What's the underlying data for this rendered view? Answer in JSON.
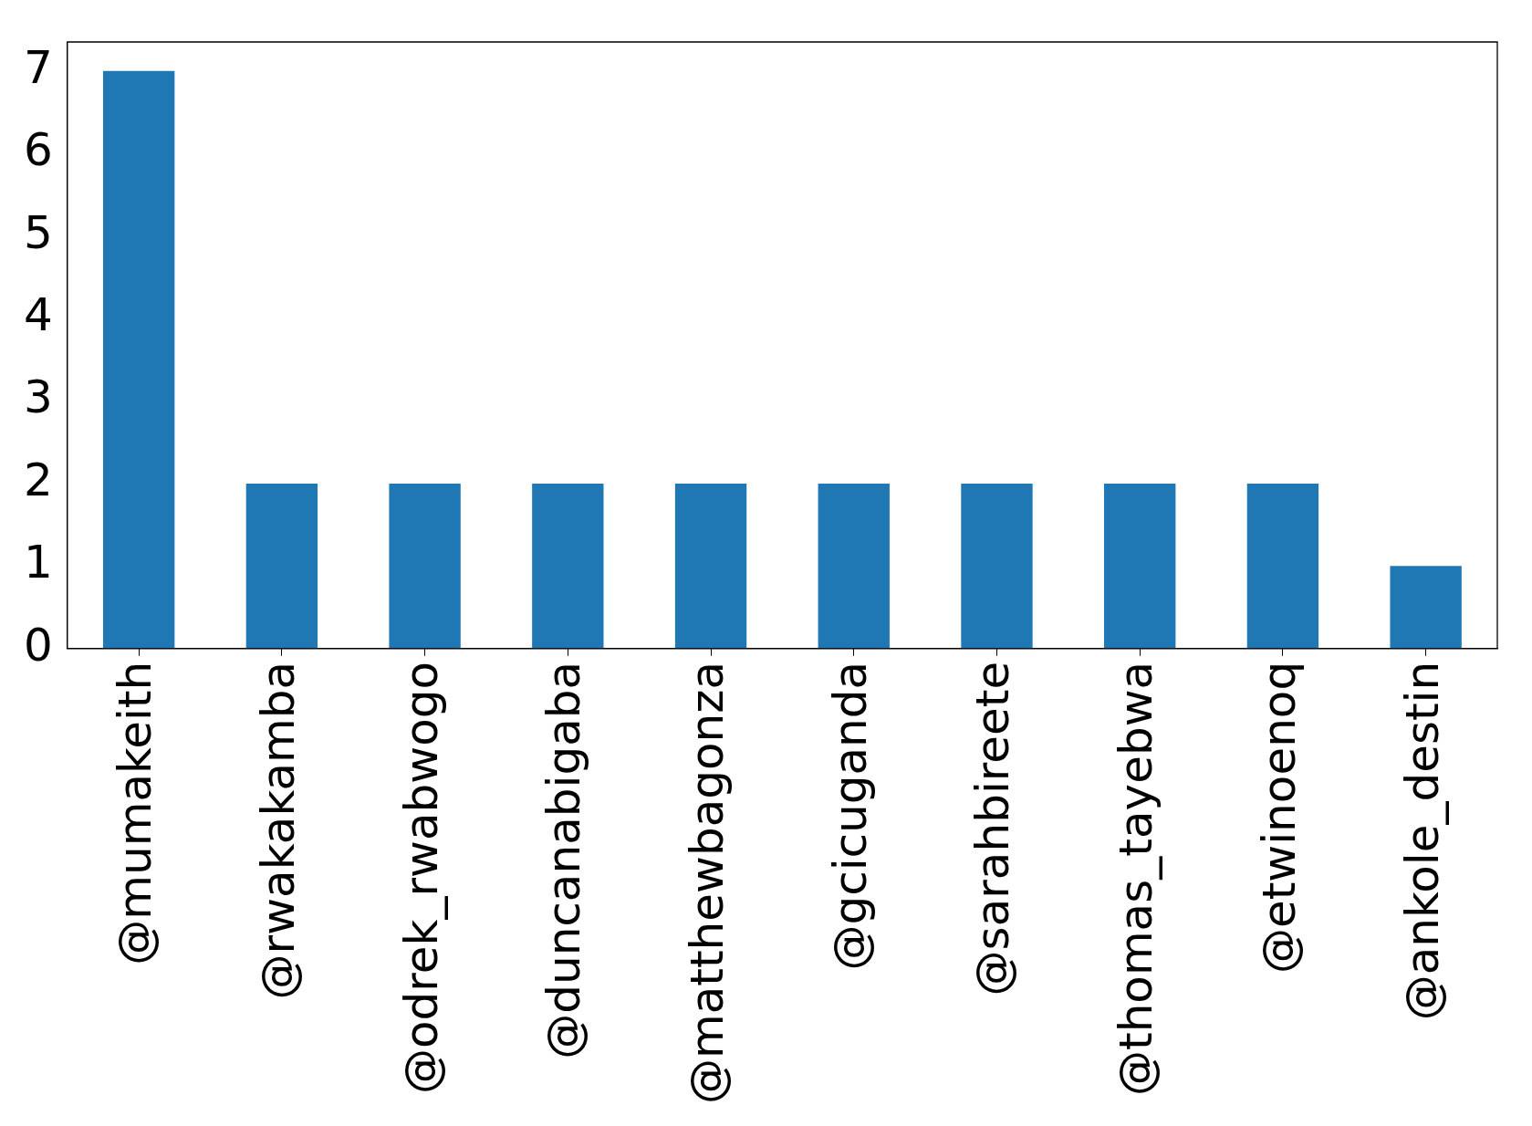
{
  "chart_data": {
    "type": "bar",
    "categories": [
      "@mumakeith",
      "@rwakakamba",
      "@odrek_rwabwogo",
      "@duncanabigaba",
      "@matthewbagonza",
      "@gcicuganda",
      "@sarahbireete",
      "@thomas_tayebwa",
      "@etwinoenoq",
      "@ankole_destin"
    ],
    "values": [
      7,
      2,
      2,
      2,
      2,
      2,
      2,
      2,
      2,
      1
    ],
    "color": "#1f77b4",
    "ylim": [
      0,
      7.35
    ],
    "yticks": [
      0,
      1,
      2,
      3,
      4,
      5,
      6,
      7
    ],
    "grid": false,
    "legend": false
  }
}
